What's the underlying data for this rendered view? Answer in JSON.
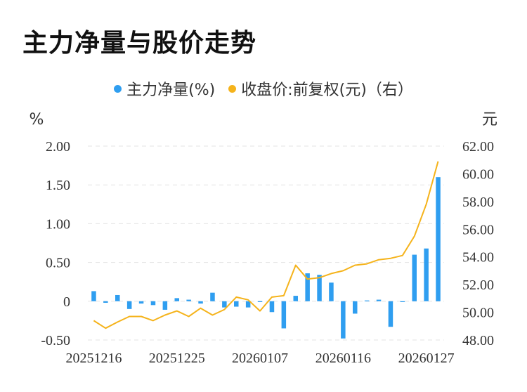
{
  "title": "主力净量与股价走势",
  "legend": [
    {
      "label": "主力净量(%)",
      "color": "#2f9ef0"
    },
    {
      "label": "收盘价:前复权(元)（右）",
      "color": "#f5b31b"
    }
  ],
  "chart_data": {
    "type": "bar+line",
    "left_axis": {
      "unit": "%",
      "ticks": [
        "2.00",
        "1.50",
        "1.00",
        "0.50",
        "0",
        "-0.50"
      ],
      "ylim": [
        -0.5,
        2.0
      ]
    },
    "right_axis": {
      "unit": "元",
      "ticks": [
        "62.00",
        "60.00",
        "58.00",
        "56.00",
        "54.00",
        "52.00",
        "50.00",
        "48.00"
      ],
      "ylim": [
        48,
        62
      ]
    },
    "x_tick_labels": [
      "20251216",
      "20251225",
      "20260107",
      "20260116",
      "20260127"
    ],
    "x_tick_indices": [
      0,
      7,
      14,
      21,
      28
    ],
    "grid": true,
    "series": [
      {
        "name": "主力净量(%)",
        "type": "bar",
        "axis": "left",
        "color": "#2f9ef0",
        "values": [
          0.13,
          -0.02,
          0.08,
          -0.1,
          -0.03,
          -0.05,
          -0.11,
          0.04,
          0.02,
          -0.03,
          0.11,
          -0.08,
          -0.07,
          -0.08,
          0.0,
          -0.14,
          -0.35,
          0.07,
          0.36,
          0.34,
          0.24,
          -0.48,
          -0.16,
          0.01,
          0.02,
          -0.33,
          0.0,
          0.6,
          0.68,
          1.6
        ]
      },
      {
        "name": "收盘价:前复权(元)（右）",
        "type": "line",
        "axis": "right",
        "color": "#f5b31b",
        "values": [
          49.4,
          48.85,
          49.3,
          49.7,
          49.7,
          49.4,
          49.8,
          50.1,
          49.7,
          50.3,
          49.8,
          50.2,
          51.1,
          50.9,
          50.1,
          51.1,
          51.2,
          53.4,
          52.4,
          52.5,
          52.8,
          53.0,
          53.4,
          53.5,
          53.8,
          53.9,
          54.1,
          55.5,
          57.8,
          60.9
        ]
      }
    ]
  }
}
